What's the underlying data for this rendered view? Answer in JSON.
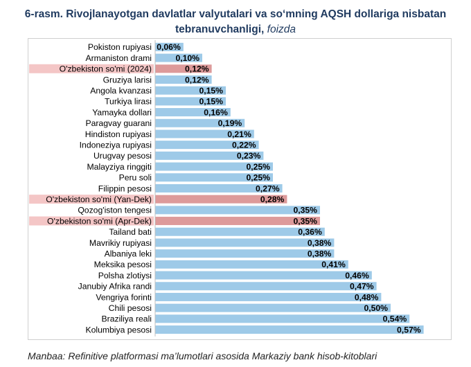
{
  "figure": {
    "title": "6-rasm. Rivojlanayotgan davlatlar valyutalari va so‘mning AQSH dollariga nisbatan tebranuvchanligi,",
    "title_unit": "foizda",
    "source": "Manbaa: Refinitive platformasi ma’lumotlari asosida Markaziy bank hisob-kitoblari"
  },
  "colors": {
    "bar": "#9ecae8",
    "highlight_bar": "#dd9a9a",
    "highlight_label_bg": "#f4c6c6",
    "title": "#1f3a5f"
  },
  "chart_data": {
    "type": "bar",
    "orientation": "horizontal",
    "title": "6-rasm. Rivojlanayotgan davlatlar valyutalari va so‘mning AQSH dollariga nisbatan tebranuvchanligi, foizda",
    "xlabel": "",
    "ylabel": "",
    "xlim": [
      0,
      0.6
    ],
    "grid": false,
    "legend": "none",
    "categories": [
      "Pokiston rupiyasi",
      "Armaniston drami",
      "O'zbekiston so'mi (2024)",
      "Gruziya larisi",
      "Angola kvanzasi",
      "Turkiya lirasi",
      "Yamayka dollari",
      "Paragvay guarani",
      "Hindiston rupiyasi",
      "Indoneziya rupiyasi",
      "Urugvay pesosi",
      "Malayziya ringgiti",
      "Peru soli",
      "Filippin pesosi",
      "O'zbekiston so'mi (Yan-Dek)",
      "Qozog'iston tengesi",
      "O'zbekiston so'mi (Apr-Dek)",
      "Tailand bati",
      "Mavrikiy rupiyasi",
      "Albaniya leki",
      "Meksika pesosi",
      "Polsha zlotiysi",
      "Janubiy Afrika randi",
      "Vengriya forinti",
      "Chili pesosi",
      "Braziliya reali",
      "Kolumbiya pesosi"
    ],
    "values": [
      0.06,
      0.1,
      0.12,
      0.12,
      0.15,
      0.15,
      0.16,
      0.19,
      0.21,
      0.22,
      0.23,
      0.25,
      0.25,
      0.27,
      0.28,
      0.35,
      0.35,
      0.36,
      0.38,
      0.38,
      0.41,
      0.46,
      0.47,
      0.48,
      0.5,
      0.54,
      0.57
    ],
    "data_labels": [
      "0,06%",
      "0,10%",
      "0,12%",
      "0,12%",
      "0,15%",
      "0,15%",
      "0,16%",
      "0,19%",
      "0,21%",
      "0,22%",
      "0,23%",
      "0,25%",
      "0,25%",
      "0,27%",
      "0,28%",
      "0,35%",
      "0,35%",
      "0,36%",
      "0,38%",
      "0,38%",
      "0,41%",
      "0,46%",
      "0,47%",
      "0,48%",
      "0,50%",
      "0,54%",
      "0,57%"
    ],
    "highlighted": [
      2,
      14,
      16
    ]
  }
}
